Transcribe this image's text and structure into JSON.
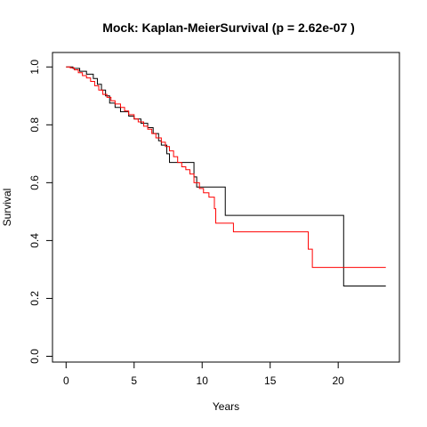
{
  "chart_data": {
    "type": "line",
    "step": true,
    "title": "Mock:  Kaplan-MeierSurvival (p = 2.62e-07 )",
    "xlabel": "Years",
    "ylabel": "Survival",
    "xlim": [
      -1,
      24.5
    ],
    "ylim": [
      -0.02,
      1.05
    ],
    "xticks": [
      0,
      5,
      10,
      15,
      20
    ],
    "yticks": [
      0.0,
      0.2,
      0.4,
      0.6,
      0.8,
      1.0
    ],
    "xtick_labels": [
      "0",
      "5",
      "10",
      "15",
      "20"
    ],
    "ytick_labels": [
      "0.0",
      "0.2",
      "0.4",
      "0.6",
      "0.8",
      "1.0"
    ],
    "grid": false,
    "series": [
      {
        "color": "#000000",
        "points": [
          [
            0,
            1.0
          ],
          [
            0.5,
            0.995
          ],
          [
            1.0,
            0.985
          ],
          [
            1.5,
            0.975
          ],
          [
            2.0,
            0.96
          ],
          [
            2.3,
            0.94
          ],
          [
            2.6,
            0.92
          ],
          [
            2.9,
            0.9
          ],
          [
            3.2,
            0.875
          ],
          [
            3.6,
            0.86
          ],
          [
            4.0,
            0.845
          ],
          [
            4.6,
            0.83
          ],
          [
            5.0,
            0.82
          ],
          [
            5.5,
            0.805
          ],
          [
            6.0,
            0.79
          ],
          [
            6.4,
            0.77
          ],
          [
            6.8,
            0.745
          ],
          [
            7.0,
            0.73
          ],
          [
            7.4,
            0.7
          ],
          [
            7.6,
            0.67
          ],
          [
            9.4,
            0.62
          ],
          [
            9.6,
            0.585
          ],
          [
            11.7,
            0.487
          ],
          [
            20.4,
            0.243
          ],
          [
            23.5,
            0.243
          ]
        ]
      },
      {
        "color": "#ff0000",
        "points": [
          [
            0,
            1.0
          ],
          [
            0.3,
            0.997
          ],
          [
            0.6,
            0.99
          ],
          [
            0.9,
            0.98
          ],
          [
            1.2,
            0.97
          ],
          [
            1.5,
            0.962
          ],
          [
            1.8,
            0.95
          ],
          [
            2.1,
            0.935
          ],
          [
            2.4,
            0.92
          ],
          [
            2.7,
            0.905
          ],
          [
            3.0,
            0.895
          ],
          [
            3.3,
            0.883
          ],
          [
            3.6,
            0.872
          ],
          [
            4.0,
            0.86
          ],
          [
            4.3,
            0.848
          ],
          [
            4.6,
            0.835
          ],
          [
            5.0,
            0.82
          ],
          [
            5.3,
            0.81
          ],
          [
            5.7,
            0.795
          ],
          [
            6.0,
            0.785
          ],
          [
            6.3,
            0.77
          ],
          [
            6.6,
            0.755
          ],
          [
            7.0,
            0.74
          ],
          [
            7.3,
            0.725
          ],
          [
            7.6,
            0.71
          ],
          [
            7.9,
            0.69
          ],
          [
            8.2,
            0.67
          ],
          [
            8.5,
            0.655
          ],
          [
            8.8,
            0.645
          ],
          [
            9.1,
            0.63
          ],
          [
            9.4,
            0.6
          ],
          [
            9.8,
            0.58
          ],
          [
            10.1,
            0.565
          ],
          [
            10.5,
            0.55
          ],
          [
            10.9,
            0.51
          ],
          [
            11.0,
            0.46
          ],
          [
            12.3,
            0.43
          ],
          [
            17.8,
            0.37
          ],
          [
            18.1,
            0.307
          ],
          [
            23.5,
            0.307
          ]
        ]
      }
    ]
  }
}
